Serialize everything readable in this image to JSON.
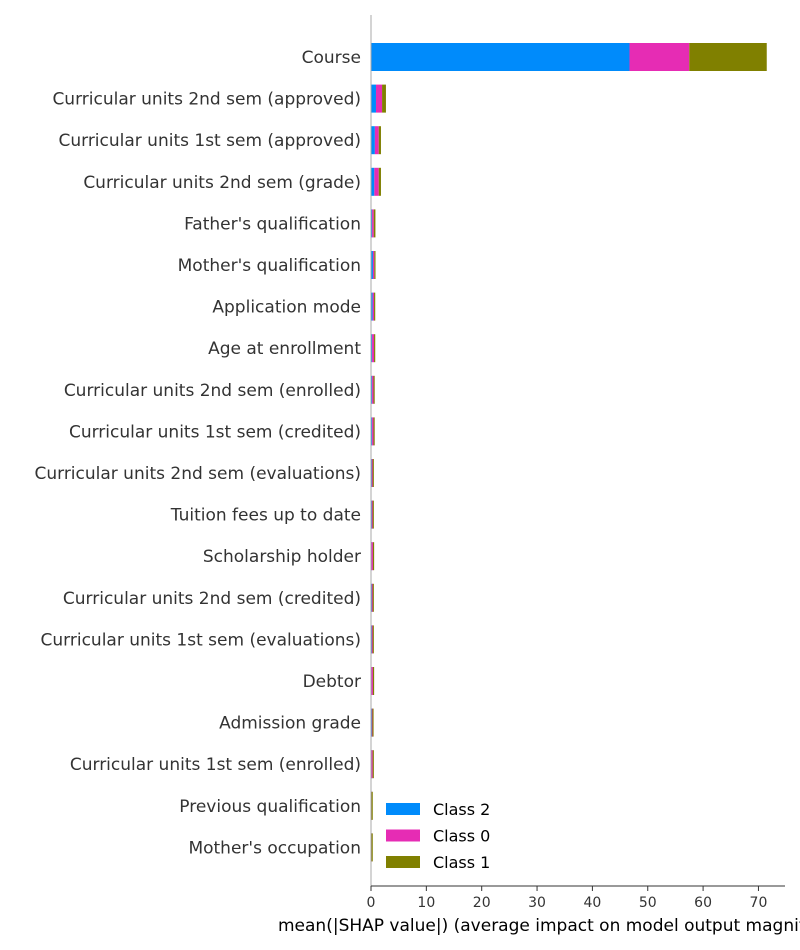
{
  "chart_data": {
    "type": "bar",
    "orientation": "horizontal",
    "stacked": true,
    "categories": [
      "Course",
      "Curricular units 2nd sem (approved)",
      "Curricular units 1st sem (approved)",
      "Curricular units 2nd sem (grade)",
      "Father's qualification",
      "Mother's qualification",
      "Application mode",
      "Age at enrollment",
      "Curricular units 2nd sem (enrolled)",
      "Curricular units 1st sem (credited)",
      "Curricular units 2nd sem (evaluations)",
      "Tuition fees up to date",
      "Scholarship holder",
      "Curricular units 2nd sem (credited)",
      "Curricular units 1st sem (evaluations)",
      "Debtor",
      "Admission grade",
      "Curricular units 1st sem (enrolled)",
      "Previous qualification",
      "Mother's occupation"
    ],
    "series": [
      {
        "name": "Class 2",
        "color": "#008bfb",
        "values": [
          46.7,
          0.9,
          0.7,
          0.6,
          0.2,
          0.35,
          0.3,
          0.2,
          0.2,
          0.2,
          0.15,
          0.15,
          0.1,
          0.15,
          0.15,
          0.1,
          0.15,
          0.1,
          0.05,
          0.05
        ]
      },
      {
        "name": "Class 0",
        "color": "#e62cb4",
        "values": [
          10.8,
          1.1,
          0.7,
          0.8,
          0.3,
          0.25,
          0.25,
          0.35,
          0.25,
          0.25,
          0.15,
          0.15,
          0.25,
          0.15,
          0.15,
          0.25,
          0.1,
          0.2,
          0.05,
          0.05
        ]
      },
      {
        "name": "Class 1",
        "color": "#808000",
        "values": [
          14.0,
          0.7,
          0.4,
          0.4,
          0.3,
          0.1,
          0.1,
          0.15,
          0.15,
          0.1,
          0.05,
          0.05,
          0.05,
          0.05,
          0.05,
          0.05,
          0.15,
          0.1,
          0.05,
          0.05
        ]
      }
    ],
    "xlabel": "mean(|SHAP value|) (average impact on model output magnitude)",
    "ylabel": "",
    "xlim": [
      0,
      75
    ],
    "xticks": [
      0,
      10,
      20,
      30,
      40,
      50,
      60,
      70
    ],
    "grid": false,
    "legend_position": "bottom-right"
  }
}
